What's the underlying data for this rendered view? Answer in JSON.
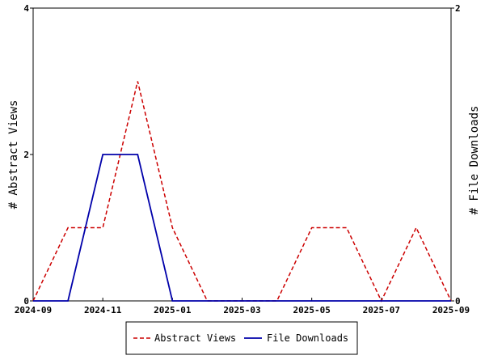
{
  "chart_data": {
    "type": "line",
    "x": [
      "2024-09",
      "2024-10",
      "2024-11",
      "2024-12",
      "2025-01",
      "2025-02",
      "2025-03",
      "2025-04",
      "2025-05",
      "2025-06",
      "2025-07",
      "2025-08",
      "2025-09"
    ],
    "x_tick_labels": [
      "2024-09",
      "2024-11",
      "2025-01",
      "2025-03",
      "2025-05",
      "2025-07",
      "2025-09"
    ],
    "series": [
      {
        "name": "Abstract Views",
        "axis": "left",
        "color": "#cc0000",
        "dash": "dashed",
        "values": [
          0,
          1,
          1,
          3,
          1,
          0,
          0,
          0,
          1,
          1,
          0,
          1,
          0
        ]
      },
      {
        "name": "File Downloads",
        "axis": "right",
        "color": "#0000aa",
        "dash": "solid",
        "values": [
          0,
          0,
          1,
          1,
          0,
          0,
          0,
          0,
          0,
          0,
          0,
          0,
          0
        ]
      }
    ],
    "ylabel": "# Abstract Views",
    "y2label": "# File Downloads",
    "ylim": [
      0,
      4
    ],
    "y2lim": [
      0,
      2
    ],
    "y_ticks": [
      0,
      2,
      4
    ],
    "y2_ticks": [
      0,
      2
    ],
    "legend_position": "bottom-center",
    "grid": false
  }
}
